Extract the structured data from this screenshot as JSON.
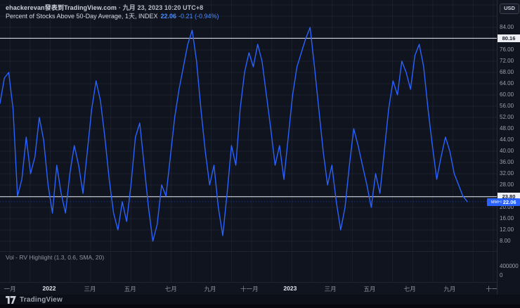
{
  "header": {
    "watermark_user": "ehackerevan發表到TradingView.com",
    "watermark_date": "· 九月 23, 2023 10:20 UTC+8",
    "legend": {
      "title": "Percent of Stocks Above 50-Day Average, 1天, INDEX",
      "value": "22.06",
      "change": "-0.21 (-0.94%)"
    }
  },
  "footer": {
    "brand": "TradingView"
  },
  "colors": {
    "accent_blue": "#2962ff",
    "level_line": "#e8eaf1",
    "tag_white_bg": "#edeff4",
    "background": "#10141f"
  },
  "chart_data": {
    "type": "line",
    "title": "Percent of Stocks Above 50-Day Average",
    "symbol": "MMFI",
    "interval": "1天",
    "exchange": "INDEX",
    "currency": "USD",
    "last_value": 22.06,
    "change": -0.21,
    "change_pct": -0.94,
    "ylim": [
      8,
      84
    ],
    "y_step": 4,
    "levels": [
      80.16,
      23.8
    ],
    "grid": true,
    "legend_position": "top-left",
    "x_tick_labels": [
      "一月",
      "2022",
      "三月",
      "五月",
      "七月",
      "九月",
      "十一月",
      "2023",
      "三月",
      "五月",
      "七月",
      "九月",
      "十一"
    ],
    "x_ticks": [
      {
        "label": "一月",
        "f": 0.02,
        "type": "month"
      },
      {
        "label": "2022",
        "f": 0.099,
        "type": "year"
      },
      {
        "label": "三月",
        "f": 0.181,
        "type": "month"
      },
      {
        "label": "五月",
        "f": 0.262,
        "type": "month"
      },
      {
        "label": "七月",
        "f": 0.344,
        "type": "month"
      },
      {
        "label": "九月",
        "f": 0.423,
        "type": "month"
      },
      {
        "label": "十一月",
        "f": 0.502,
        "type": "month"
      },
      {
        "label": "2023",
        "f": 0.584,
        "type": "year"
      },
      {
        "label": "三月",
        "f": 0.665,
        "type": "month"
      },
      {
        "label": "五月",
        "f": 0.744,
        "type": "month"
      },
      {
        "label": "七月",
        "f": 0.825,
        "type": "month"
      },
      {
        "label": "九月",
        "f": 0.905,
        "type": "month"
      },
      {
        "label": "十一",
        "f": 0.99,
        "type": "month"
      }
    ],
    "series": [
      {
        "name": "MMFI",
        "values": [
          57,
          66,
          68,
          55,
          24,
          30,
          45,
          32,
          38,
          52,
          44,
          28,
          18,
          35,
          25,
          18,
          32,
          42,
          35,
          25,
          40,
          55,
          65,
          58,
          45,
          30,
          18,
          12,
          22,
          15,
          28,
          45,
          50,
          35,
          20,
          8,
          14,
          28,
          24,
          38,
          52,
          62,
          70,
          78,
          83,
          72,
          55,
          40,
          28,
          35,
          20,
          10,
          25,
          42,
          35,
          55,
          68,
          75,
          70,
          78,
          72,
          60,
          48,
          35,
          42,
          30,
          45,
          60,
          70,
          75,
          80,
          84,
          70,
          55,
          40,
          28,
          35,
          22,
          12,
          20,
          35,
          48,
          42,
          35,
          28,
          20,
          32,
          25,
          40,
          55,
          65,
          60,
          72,
          68,
          62,
          74,
          78,
          70,
          55,
          42,
          30,
          38,
          45,
          40,
          32,
          28,
          24,
          22.06
        ]
      }
    ],
    "volume_pane": {
      "label": "Vol - RV Highlight (1.3, 0.6, SMA, 20)",
      "scale_labels": [
        "400000",
        "0"
      ]
    }
  }
}
